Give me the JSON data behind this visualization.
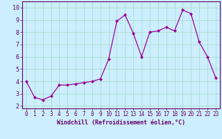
{
  "x_vals": [
    0,
    1,
    2,
    3,
    4,
    5,
    6,
    7,
    8,
    9,
    10,
    11,
    12,
    13,
    14,
    15,
    16,
    17,
    18,
    19,
    20,
    21,
    22,
    23
  ],
  "y_vals": [
    4.0,
    2.7,
    2.5,
    2.8,
    3.7,
    3.7,
    3.8,
    3.9,
    4.0,
    4.2,
    5.8,
    8.9,
    9.4,
    7.9,
    6.0,
    8.0,
    8.1,
    8.4,
    8.1,
    9.8,
    9.5,
    7.2,
    6.0,
    4.3
  ],
  "x_ticks": [
    0,
    1,
    2,
    3,
    4,
    5,
    6,
    7,
    8,
    9,
    10,
    11,
    12,
    13,
    14,
    15,
    16,
    17,
    18,
    19,
    20,
    21,
    22,
    23
  ],
  "y_ticks": [
    2,
    3,
    4,
    5,
    6,
    7,
    8,
    9,
    10
  ],
  "ylim": [
    1.8,
    10.5
  ],
  "xlim": [
    -0.5,
    23.5
  ],
  "line_color": "#990099",
  "marker": "D",
  "marker_size": 2.0,
  "bg_color": "#cceeff",
  "grid_color": "#aaddcc",
  "xlabel": "Windchill (Refroidissement éolien,°C)",
  "xlabel_color": "#660066",
  "tick_color": "#660066",
  "tick_fontsize": 5.5,
  "xlabel_fontsize": 6.0,
  "linewidth": 0.9
}
